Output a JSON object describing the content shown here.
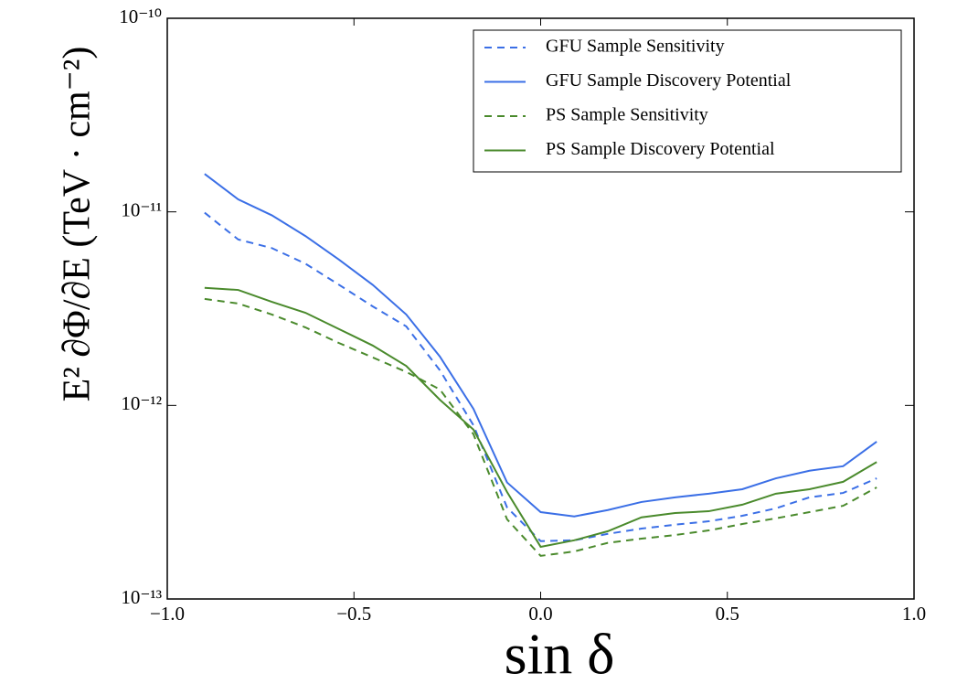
{
  "chart_data": {
    "type": "line",
    "x_label": "sin δ",
    "y_label": "E² ∂Φ/∂E  (TeV · cm⁻²)",
    "x": [
      -0.9,
      -0.81,
      -0.72,
      -0.63,
      -0.54,
      -0.45,
      -0.36,
      -0.27,
      -0.18,
      -0.09,
      0,
      0.09,
      0.18,
      0.27,
      0.36,
      0.45,
      0.54,
      0.63,
      0.72,
      0.81,
      0.9
    ],
    "series": [
      {
        "name": "GFU Sample Sensitivity",
        "color": "#3b6fe6",
        "linestyle": "dashed",
        "values": [
          9.9e-12,
          7.2e-12,
          6.5e-12,
          5.4e-12,
          4.2e-12,
          3.25e-12,
          2.56e-12,
          1.52e-12,
          7.9e-13,
          2.97e-13,
          1.99e-13,
          2.01e-13,
          2.17e-13,
          2.31e-13,
          2.42e-13,
          2.52e-13,
          2.69e-13,
          2.94e-13,
          3.35e-13,
          3.53e-13,
          4.2e-13
        ]
      },
      {
        "name": "GFU Sample Discovery Potential",
        "color": "#3b6fe6",
        "linestyle": "solid",
        "values": [
          1.57e-11,
          1.16e-11,
          9.6e-12,
          7.5e-12,
          5.66e-12,
          4.2e-12,
          2.95e-12,
          1.79e-12,
          9.6e-13,
          4e-13,
          2.81e-13,
          2.67e-13,
          2.88e-13,
          3.17e-13,
          3.35e-13,
          3.5e-13,
          3.69e-13,
          4.2e-13,
          4.6e-13,
          4.85e-13,
          6.5e-13
        ]
      },
      {
        "name": "PS Sample Sensitivity",
        "color": "#4a8a2c",
        "linestyle": "dashed",
        "values": [
          3.55e-12,
          3.36e-12,
          2.95e-12,
          2.53e-12,
          2.1e-12,
          1.77e-12,
          1.49e-12,
          1.21e-12,
          7.1e-13,
          2.58e-13,
          1.67e-13,
          1.76e-13,
          1.95e-13,
          2.05e-13,
          2.14e-13,
          2.26e-13,
          2.44e-13,
          2.61e-13,
          2.81e-13,
          3.03e-13,
          3.77e-13
        ]
      },
      {
        "name": "PS Sample Discovery Potential",
        "color": "#4a8a2c",
        "linestyle": "solid",
        "values": [
          4.05e-12,
          3.95e-12,
          3.43e-12,
          3.01e-12,
          2.48e-12,
          2.04e-12,
          1.6e-12,
          1.07e-12,
          7.5e-13,
          3.57e-13,
          1.86e-13,
          2.01e-13,
          2.24e-13,
          2.64e-13,
          2.78e-13,
          2.84e-13,
          3.07e-13,
          3.5e-13,
          3.69e-13,
          4.03e-13,
          5.1e-13
        ]
      }
    ],
    "xlim": [
      -1.0,
      1.0
    ],
    "xticks": [
      {
        "value": -1.0,
        "label": "−1.0"
      },
      {
        "value": -0.5,
        "label": "−0.5"
      },
      {
        "value": 0.0,
        "label": "0.0"
      },
      {
        "value": 0.5,
        "label": "0.5"
      },
      {
        "value": 1.0,
        "label": "1.0"
      }
    ],
    "ylim": [
      1e-13,
      1e-10
    ],
    "yticks": [
      {
        "value": 1e-13,
        "label": "10⁻¹³"
      },
      {
        "value": 1e-12,
        "label": "10⁻¹²"
      },
      {
        "value": 1e-11,
        "label": "10⁻¹¹"
      },
      {
        "value": 1e-10,
        "label": "10⁻¹⁰"
      }
    ],
    "y_log": true,
    "legend": "upper right"
  }
}
